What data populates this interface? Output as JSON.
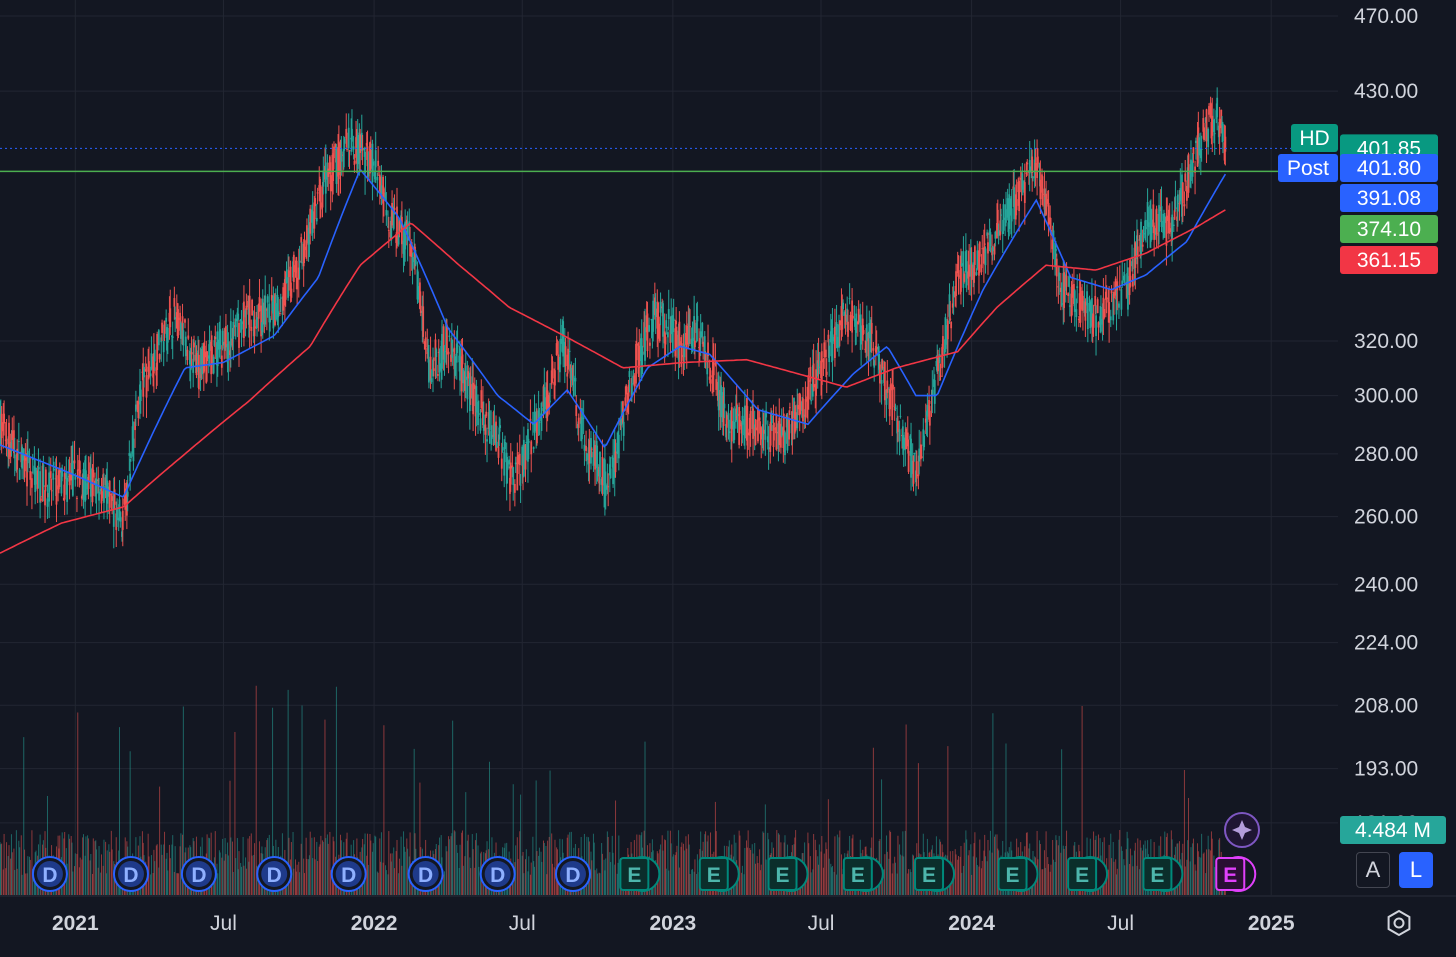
{
  "chart_data": {
    "type": "candlestick",
    "symbol": "HD",
    "x_range": [
      "2020-10-01",
      "2024-11-30"
    ],
    "y_scale": "log",
    "ylim": [
      172,
      475
    ],
    "price_ticks": [
      "470.00",
      "430.00",
      "401.85",
      "320.00",
      "300.00",
      "280.00",
      "260.00",
      "240.00",
      "224.00",
      "208.00",
      "193.00",
      "181.00"
    ],
    "time_ticks": [
      {
        "label": "2021",
        "date": "2021-01-01",
        "bold": true
      },
      {
        "label": "Jul",
        "date": "2021-07-01",
        "bold": false
      },
      {
        "label": "2022",
        "date": "2022-01-01",
        "bold": true
      },
      {
        "label": "Jul",
        "date": "2022-07-01",
        "bold": false
      },
      {
        "label": "2023",
        "date": "2023-01-01",
        "bold": true
      },
      {
        "label": "Jul",
        "date": "2023-07-01",
        "bold": false
      },
      {
        "label": "2024",
        "date": "2024-01-01",
        "bold": true
      },
      {
        "label": "Jul",
        "date": "2024-07-01",
        "bold": false
      },
      {
        "label": "2025",
        "date": "2025-01-01",
        "bold": true
      }
    ],
    "price_path": [
      [
        "2020-10-01",
        290
      ],
      [
        "2020-11-01",
        275
      ],
      [
        "2020-12-01",
        268
      ],
      [
        "2021-01-01",
        272
      ],
      [
        "2021-02-01",
        270
      ],
      [
        "2021-03-01",
        258
      ],
      [
        "2021-03-20",
        300
      ],
      [
        "2021-05-01",
        330
      ],
      [
        "2021-06-01",
        310
      ],
      [
        "2021-07-01",
        318
      ],
      [
        "2021-08-01",
        330
      ],
      [
        "2021-09-01",
        330
      ],
      [
        "2021-10-01",
        350
      ],
      [
        "2021-11-01",
        385
      ],
      [
        "2021-12-01",
        405
      ],
      [
        "2022-01-01",
        395
      ],
      [
        "2022-01-20",
        370
      ],
      [
        "2022-02-15",
        360
      ],
      [
        "2022-03-10",
        310
      ],
      [
        "2022-04-01",
        320
      ],
      [
        "2022-05-01",
        300
      ],
      [
        "2022-06-01",
        285
      ],
      [
        "2022-06-20",
        270
      ],
      [
        "2022-08-01",
        300
      ],
      [
        "2022-08-20",
        320
      ],
      [
        "2022-09-15",
        285
      ],
      [
        "2022-10-15",
        270
      ],
      [
        "2022-11-15",
        310
      ],
      [
        "2022-12-10",
        330
      ],
      [
        "2023-01-10",
        320
      ],
      [
        "2023-02-01",
        325
      ],
      [
        "2023-03-10",
        290
      ],
      [
        "2023-04-15",
        290
      ],
      [
        "2023-05-15",
        285
      ],
      [
        "2023-07-01",
        310
      ],
      [
        "2023-08-01",
        330
      ],
      [
        "2023-09-01",
        320
      ],
      [
        "2023-10-10",
        285
      ],
      [
        "2023-10-25",
        275
      ],
      [
        "2023-11-15",
        300
      ],
      [
        "2023-12-15",
        345
      ],
      [
        "2024-01-15",
        355
      ],
      [
        "2024-03-01",
        380
      ],
      [
        "2024-03-20",
        395
      ],
      [
        "2024-04-20",
        340
      ],
      [
        "2024-06-01",
        330
      ],
      [
        "2024-07-10",
        340
      ],
      [
        "2024-08-01",
        370
      ],
      [
        "2024-09-01",
        365
      ],
      [
        "2024-10-01",
        400
      ],
      [
        "2024-10-25",
        420
      ],
      [
        "2024-11-08",
        402
      ]
    ],
    "ma_short": [
      [
        "2020-10-01",
        283
      ],
      [
        "2021-01-01",
        273
      ],
      [
        "2021-03-01",
        266
      ],
      [
        "2021-05-15",
        310
      ],
      [
        "2021-07-01",
        312
      ],
      [
        "2021-09-01",
        322
      ],
      [
        "2021-10-25",
        345
      ],
      [
        "2021-12-15",
        392
      ],
      [
        "2022-02-01",
        370
      ],
      [
        "2022-04-01",
        325
      ],
      [
        "2022-06-01",
        300
      ],
      [
        "2022-07-15",
        290
      ],
      [
        "2022-08-25",
        302
      ],
      [
        "2022-10-10",
        282
      ],
      [
        "2022-12-01",
        310
      ],
      [
        "2023-01-10",
        318
      ],
      [
        "2023-02-15",
        315
      ],
      [
        "2023-04-15",
        295
      ],
      [
        "2023-06-15",
        290
      ],
      [
        "2023-08-10",
        308
      ],
      [
        "2023-09-20",
        318
      ],
      [
        "2023-10-25",
        300
      ],
      [
        "2023-11-20",
        300
      ],
      [
        "2024-01-15",
        340
      ],
      [
        "2024-03-20",
        378
      ],
      [
        "2024-05-01",
        345
      ],
      [
        "2024-06-20",
        340
      ],
      [
        "2024-08-01",
        346
      ],
      [
        "2024-09-20",
        360
      ],
      [
        "2024-11-08",
        391.08
      ]
    ],
    "ma_long": [
      [
        "2020-10-01",
        249
      ],
      [
        "2020-12-15",
        258
      ],
      [
        "2021-03-01",
        263
      ],
      [
        "2021-05-15",
        280
      ],
      [
        "2021-08-01",
        298
      ],
      [
        "2021-10-15",
        318
      ],
      [
        "2021-12-15",
        350
      ],
      [
        "2022-02-15",
        368
      ],
      [
        "2022-04-15",
        350
      ],
      [
        "2022-06-15",
        333
      ],
      [
        "2022-08-15",
        323
      ],
      [
        "2022-11-01",
        310
      ],
      [
        "2023-01-15",
        312
      ],
      [
        "2023-04-01",
        313
      ],
      [
        "2023-06-01",
        308
      ],
      [
        "2023-08-01",
        303
      ],
      [
        "2023-10-01",
        310
      ],
      [
        "2023-12-15",
        316
      ],
      [
        "2024-02-01",
        333
      ],
      [
        "2024-04-01",
        350
      ],
      [
        "2024-06-01",
        348
      ],
      [
        "2024-08-01",
        355
      ],
      [
        "2024-10-01",
        366
      ],
      [
        "2024-11-08",
        374.1
      ]
    ],
    "last_price": 401.85,
    "post_price": 401.8,
    "horizontal_line": 391.08,
    "ma_short_value": 391.08,
    "ma_long_value": 374.1,
    "level_value": 361.15,
    "volume_last": "4.484 M",
    "dividend_dates": [
      "2020-12-01",
      "2021-03-10",
      "2021-06-01",
      "2021-09-01",
      "2021-12-01",
      "2022-03-05",
      "2022-06-01",
      "2022-09-01"
    ],
    "earnings_dates": [
      "2022-11-15",
      "2023-02-20",
      "2023-05-15",
      "2023-08-15",
      "2023-11-10",
      "2024-02-20",
      "2024-05-15",
      "2024-08-15",
      "2024-11-12"
    ]
  },
  "tags": {
    "symbol_label": "HD",
    "symbol_price": "401.85",
    "post_label": "Post",
    "post_price": "401.80",
    "ma_short_label": "391.08",
    "ma_long_label": "374.10",
    "level_label": "361.15",
    "volume_label": "4.484 M"
  },
  "markers": {
    "dividend_letter": "D",
    "earnings_letter": "E"
  },
  "colors": {
    "background": "#131722",
    "up": "#26a69a",
    "down": "#ef5350",
    "ma_short": "#2962ff",
    "ma_long": "#f23645",
    "hline": "#4caf50",
    "post_tag": "#2962ff",
    "symbol_tag": "#089981",
    "ma_long_tag": "#4caf50",
    "level_tag": "#f23645",
    "volume_tag": "#26a69a",
    "earnings_badge": "#00897b",
    "dividend_badge": "#2962ff",
    "ai_badge": "#7e57c2"
  },
  "buttons": {
    "auto_label": "A",
    "log_label": "L"
  }
}
